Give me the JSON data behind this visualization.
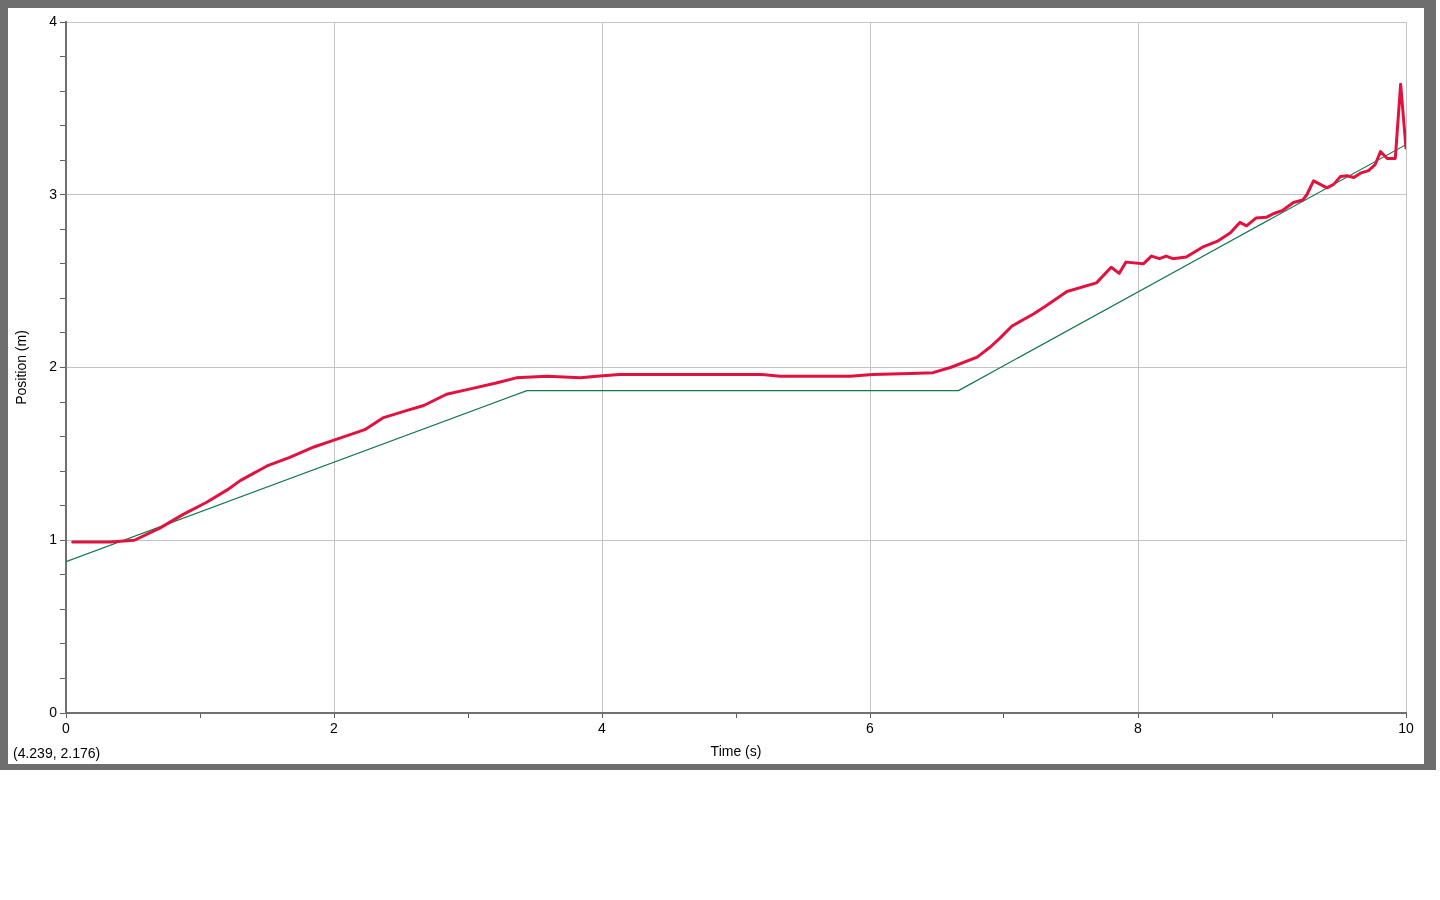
{
  "chart_data": {
    "type": "line",
    "xlabel": "Time (s)",
    "ylabel": "Position (m)",
    "annotations": [
      "(4.239, 2.176)"
    ],
    "xlim": [
      0,
      10
    ],
    "ylim": [
      0,
      4
    ],
    "xticks": [
      0,
      {
        "value": 1,
        "label": null
      },
      2,
      {
        "value": 3,
        "label": null
      },
      4,
      {
        "value": 5,
        "label": null
      },
      6,
      {
        "value": 7,
        "label": null
      },
      8,
      {
        "value": 9,
        "label": null
      },
      10
    ],
    "yticks": [
      0,
      {
        "value": 0.2,
        "label": null
      },
      {
        "value": 0.4,
        "label": null
      },
      {
        "value": 0.6,
        "label": null
      },
      {
        "value": 0.8,
        "label": null
      },
      1,
      {
        "value": 1.2,
        "label": null
      },
      {
        "value": 1.4,
        "label": null
      },
      {
        "value": 1.6,
        "label": null
      },
      {
        "value": 1.8,
        "label": null
      },
      2,
      {
        "value": 2.2,
        "label": null
      },
      {
        "value": 2.4,
        "label": null
      },
      {
        "value": 2.6,
        "label": null
      },
      {
        "value": 2.8,
        "label": null
      },
      3,
      {
        "value": 3.2,
        "label": null
      },
      {
        "value": 3.4,
        "label": null
      },
      {
        "value": 3.6,
        "label": null
      },
      {
        "value": 3.8,
        "label": null
      },
      4
    ],
    "grid": true,
    "marker": "none",
    "line_style": "solid",
    "series": [
      {
        "color": "#e2123f",
        "x": [
          0.05,
          0.33,
          0.51,
          0.7,
          0.875,
          1.05,
          1.2,
          1.3,
          1.5,
          1.67,
          1.85,
          2.0,
          2.23,
          2.37,
          2.54,
          2.67,
          2.84,
          3.01,
          3.21,
          3.36,
          3.59,
          3.84,
          3.96,
          4.13,
          4.68,
          5.18,
          5.33,
          5.85,
          6.02,
          6.3,
          6.47,
          6.6,
          6.8,
          6.9,
          6.97,
          7.06,
          7.22,
          7.32,
          7.47,
          7.69,
          7.8,
          7.86,
          7.91,
          8.04,
          8.1,
          8.16,
          8.21,
          8.26,
          8.36,
          8.49,
          8.59,
          8.69,
          8.76,
          8.81,
          8.88,
          8.96,
          9.01,
          9.08,
          9.16,
          9.23,
          9.26,
          9.31,
          9.41,
          9.46,
          9.51,
          9.56,
          9.61,
          9.66,
          9.72,
          9.77,
          9.81,
          9.86,
          9.92,
          9.96,
          10.0
        ],
        "values": [
          0.99,
          0.99,
          1.0,
          1.07,
          1.15,
          1.22,
          1.29,
          1.345,
          1.43,
          1.48,
          1.54,
          1.58,
          1.64,
          1.71,
          1.75,
          1.78,
          1.845,
          1.875,
          1.91,
          1.94,
          1.95,
          1.94,
          1.95,
          1.96,
          1.96,
          1.96,
          1.95,
          1.95,
          1.96,
          1.965,
          1.97,
          2.0,
          2.06,
          2.12,
          2.17,
          2.24,
          2.31,
          2.36,
          2.44,
          2.49,
          2.58,
          2.545,
          2.61,
          2.6,
          2.645,
          2.63,
          2.645,
          2.63,
          2.64,
          2.7,
          2.73,
          2.78,
          2.84,
          2.82,
          2.865,
          2.87,
          2.89,
          2.91,
          2.955,
          2.97,
          3.0,
          3.08,
          3.04,
          3.06,
          3.105,
          3.11,
          3.1,
          3.125,
          3.14,
          3.175,
          3.25,
          3.21,
          3.21,
          3.64,
          3.27
        ]
      },
      {
        "color": "#11784a",
        "x": [
          0,
          3.44,
          6.66,
          10
        ],
        "values": [
          0.876,
          1.866,
          1.866,
          3.29
        ]
      }
    ]
  }
}
